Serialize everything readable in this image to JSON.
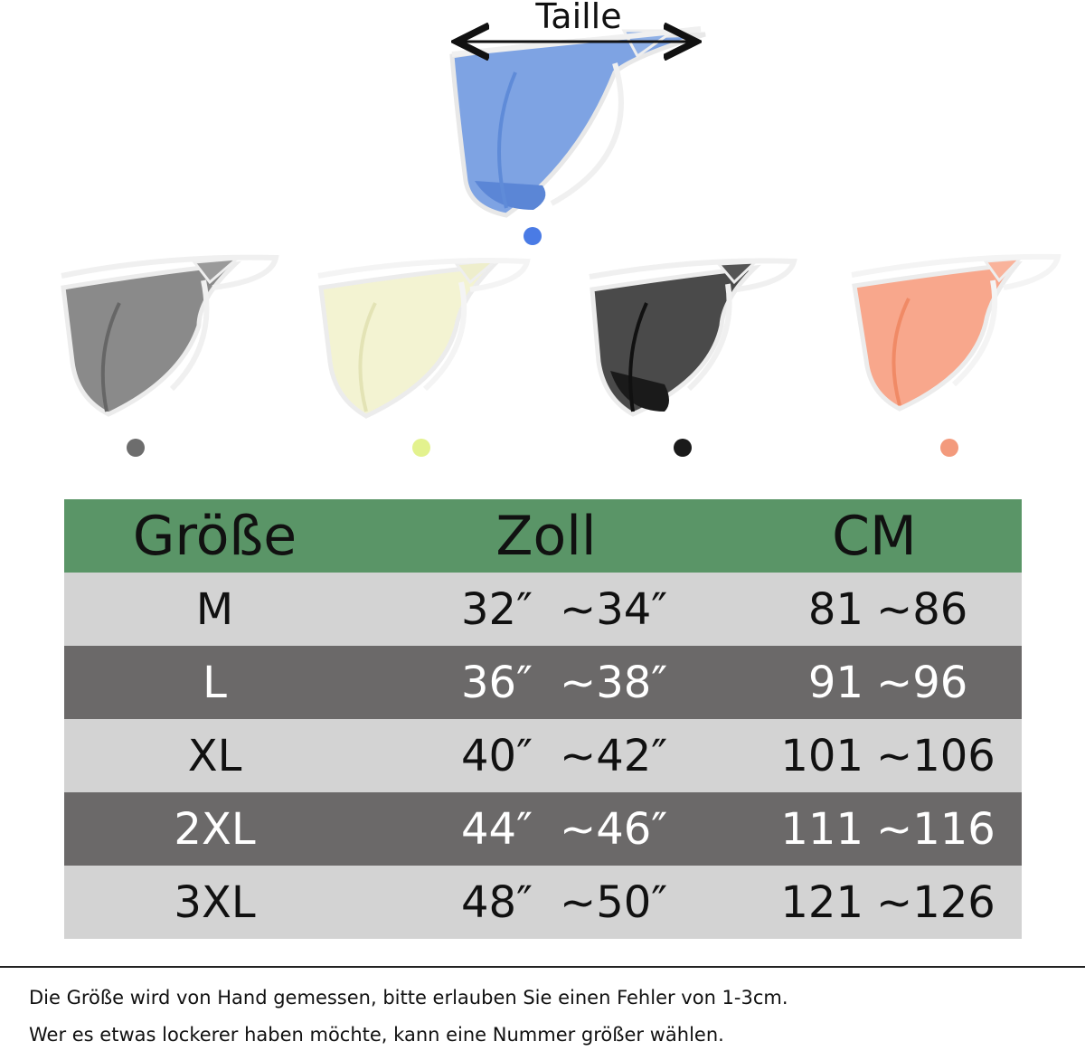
{
  "waist_label": "Taille",
  "products": [
    {
      "name": "blue",
      "color": "#4a7be5",
      "fabric": "#7ea3e3",
      "icon": "thong-blue-icon"
    },
    {
      "name": "grey",
      "color": "#6d6d6d",
      "fabric": "#8a8a8a",
      "icon": "thong-grey-icon"
    },
    {
      "name": "yellow",
      "color": "#e3f28e",
      "fabric": "#f3f3d2",
      "icon": "thong-yellow-icon"
    },
    {
      "name": "black",
      "color": "#1a1a1a",
      "fabric": "#4a4a4a",
      "icon": "thong-black-icon"
    },
    {
      "name": "orange",
      "color": "#f39a7c",
      "fabric": "#f8a78c",
      "icon": "thong-orange-icon"
    }
  ],
  "table": {
    "headers": [
      "Größe",
      "Zoll",
      "CM"
    ],
    "rows": [
      {
        "size": "M",
        "zoll_from": "32″",
        "zoll_to": "~34″",
        "cm_from": "81",
        "cm_to": "~86"
      },
      {
        "size": "L",
        "zoll_from": "36″",
        "zoll_to": "~38″",
        "cm_from": "91",
        "cm_to": "~96"
      },
      {
        "size": "XL",
        "zoll_from": "40″",
        "zoll_to": "~42″",
        "cm_from": "101",
        "cm_to": "~106"
      },
      {
        "size": "2XL",
        "zoll_from": "44″",
        "zoll_to": "~46″",
        "cm_from": "111",
        "cm_to": "~116"
      },
      {
        "size": "3XL",
        "zoll_from": "48″",
        "zoll_to": "~50″",
        "cm_from": "121",
        "cm_to": "~126"
      }
    ],
    "colors": {
      "header": "#5a9567",
      "light_row": "#d3d3d3",
      "dark_row": "#6b6969"
    }
  },
  "notes": [
    "Die Größe wird von Hand gemessen, bitte erlauben Sie einen Fehler von 1-3cm.",
    "Wer es etwas lockerer haben möchte, kann eine Nummer größer wählen."
  ]
}
